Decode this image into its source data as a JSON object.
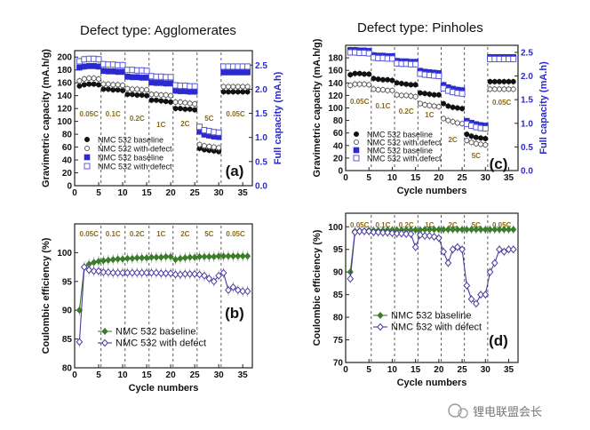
{
  "watermark": "锂电联盟会长",
  "colors": {
    "baseline_black": "#111111",
    "defect_open": "#555555",
    "baseline_blue": "#2a2ad0",
    "defect_blue": "#4a4ae0",
    "ce_green": "#3a7d2a",
    "ce_purple": "#4a3aa0",
    "errorbar": "#9a9a9a"
  },
  "chart_data": [
    {
      "panel": "a",
      "type": "scatter",
      "title": "Defect type: Agglomerates",
      "xlabel": "",
      "ylabel": "Gravimetric capacity (mA.h/g)",
      "y2label": "Full  capacity (mA.h)",
      "xlim": [
        0,
        37
      ],
      "xticks": [
        0,
        5,
        10,
        15,
        20,
        25,
        30,
        35
      ],
      "ylim": [
        0,
        210
      ],
      "yticks": [
        0,
        20,
        40,
        60,
        80,
        100,
        120,
        140,
        160,
        180,
        200
      ],
      "y2lim": [
        0,
        2.8
      ],
      "y2ticks": [
        "0.0",
        "0.5",
        "1.0",
        "1.5",
        "2.0",
        "2.5"
      ],
      "dividers": [
        5.5,
        10.5,
        15.5,
        20.5,
        25.5,
        30.5
      ],
      "rate_labels": [
        "0.05C",
        "0.1C",
        "0.2C",
        "1C",
        "2C",
        "5C",
        "0.05C"
      ],
      "legend": [
        "NMC 532 baseline",
        "NMC 532 with defect",
        "NMC 532 baseline",
        "NMC 532 with defect"
      ],
      "series": [
        {
          "name": "NMC 532 baseline",
          "marker": "filled-circle",
          "axis": "left",
          "values": [
            155,
            157,
            158,
            158,
            157,
            150,
            150,
            149,
            149,
            148,
            142,
            142,
            141,
            141,
            140,
            133,
            133,
            132,
            131,
            130,
            120,
            120,
            119,
            119,
            118,
            58,
            56,
            55,
            54,
            53,
            146,
            146,
            146,
            146,
            146,
            146
          ]
        },
        {
          "name": "NMC 532 with defect",
          "marker": "open-circle",
          "axis": "left",
          "values": [
            163,
            166,
            167,
            167,
            166,
            158,
            158,
            157,
            157,
            156,
            151,
            150,
            150,
            149,
            149,
            142,
            142,
            141,
            141,
            140,
            130,
            130,
            129,
            128,
            127,
            64,
            62,
            61,
            60,
            59,
            154,
            154,
            154,
            154,
            154,
            154
          ]
        },
        {
          "name": "NMC 532 baseline",
          "marker": "filled-square",
          "axis": "right",
          "values": [
            2.45,
            2.47,
            2.48,
            2.48,
            2.47,
            2.38,
            2.37,
            2.37,
            2.36,
            2.36,
            2.26,
            2.25,
            2.25,
            2.24,
            2.24,
            2.14,
            2.13,
            2.13,
            2.12,
            2.12,
            1.97,
            1.96,
            1.96,
            1.95,
            1.95,
            1.12,
            1.06,
            1.04,
            1.02,
            1.01,
            2.35,
            2.35,
            2.35,
            2.35,
            2.35,
            2.35
          ]
        },
        {
          "name": "NMC 532 with defect",
          "marker": "open-square",
          "axis": "right",
          "values": [
            2.58,
            2.62,
            2.63,
            2.63,
            2.62,
            2.52,
            2.51,
            2.51,
            2.5,
            2.5,
            2.4,
            2.4,
            2.39,
            2.39,
            2.38,
            2.27,
            2.26,
            2.26,
            2.25,
            2.25,
            2.08,
            2.07,
            2.07,
            2.06,
            2.06,
            1.22,
            1.15,
            1.13,
            1.11,
            1.1,
            2.47,
            2.47,
            2.47,
            2.47,
            2.47,
            2.47
          ]
        }
      ]
    },
    {
      "panel": "b",
      "type": "line",
      "xlabel": "Cycle numbers",
      "ylabel": "Coulombic efficiency (%)",
      "xlim": [
        0,
        37
      ],
      "xticks": [
        0,
        5,
        10,
        15,
        20,
        25,
        30,
        35
      ],
      "ylim": [
        80,
        105
      ],
      "yticks": [
        80,
        85,
        90,
        95,
        100
      ],
      "dividers": [
        5.5,
        10.5,
        15.5,
        20.5,
        25.5,
        30.5
      ],
      "rate_labels": [
        "0.05C",
        "0.1C",
        "0.2C",
        "1C",
        "2C",
        "5C",
        "0.05C"
      ],
      "legend": [
        "NMC 532 baseline",
        "NMC 532 with defect"
      ],
      "series": [
        {
          "name": "NMC 532 baseline",
          "marker": "filled-diamond",
          "values": [
            90,
            97.5,
            98.0,
            98.3,
            98.5,
            98.6,
            98.7,
            98.8,
            98.9,
            98.9,
            99.0,
            99.0,
            99.1,
            99.1,
            99.1,
            99.2,
            99.2,
            99.2,
            99.3,
            99.3,
            98.8,
            99.0,
            99.1,
            99.2,
            99.2,
            99.3,
            99.3,
            99.3,
            99.3,
            99.4,
            99.4,
            99.4,
            99.4,
            99.4,
            99.4,
            99.4
          ]
        },
        {
          "name": "NMC 532 with defect",
          "marker": "open-diamond",
          "values": [
            84.5,
            97.5,
            97.0,
            96.8,
            96.8,
            96.6,
            96.6,
            96.5,
            96.5,
            96.5,
            96.5,
            96.5,
            96.5,
            96.5,
            96.5,
            96.5,
            96.5,
            96.4,
            96.4,
            96.4,
            96.2,
            96.2,
            96.3,
            96.3,
            96.3,
            96.2,
            96.0,
            95.5,
            95.0,
            96.0,
            96.5,
            93.5,
            94.0,
            93.5,
            93.3,
            93.3
          ]
        }
      ]
    },
    {
      "panel": "c",
      "type": "scatter",
      "title": "Defect type: Pinholes",
      "xlabel": "Cycle numbers",
      "ylabel": "Gravimetric capacity (mA.h/g)",
      "y2label": "Full capacity (mA.h)",
      "xlim": [
        0,
        37
      ],
      "xticks": [
        0,
        5,
        10,
        15,
        20,
        25,
        30,
        35
      ],
      "ylim": [
        0,
        200
      ],
      "yticks": [
        0,
        20,
        40,
        60,
        80,
        100,
        120,
        140,
        160,
        180
      ],
      "y2lim": [
        0,
        2.65
      ],
      "y2ticks": [
        "0.0",
        "0.5",
        "1.0",
        "1.5",
        "2.0",
        "2.5"
      ],
      "dividers": [
        5.5,
        10.5,
        15.5,
        20.5,
        25.5,
        30.5
      ],
      "rate_labels": [
        "0.05C",
        "0.1C",
        "0.2C",
        "1C",
        "2C",
        "5C",
        "0.05C"
      ],
      "legend": [
        "NMC 532 baseline",
        "NMC 532 with defect",
        "NMC 532 baseline",
        "NMC 532 with defect"
      ],
      "series": [
        {
          "name": "NMC 532 baseline",
          "marker": "filled-circle",
          "axis": "left",
          "values": [
            153,
            155,
            155,
            154,
            154,
            147,
            146,
            145,
            145,
            144,
            140,
            139,
            138,
            137,
            137,
            124,
            123,
            122,
            121,
            121,
            107,
            103,
            101,
            100,
            99,
            58,
            55,
            53,
            52,
            51,
            142,
            142,
            142,
            142,
            142,
            142
          ]
        },
        {
          "name": "NMC 532 with defect",
          "marker": "open-circle",
          "axis": "left",
          "values": [
            136,
            138,
            138,
            138,
            137,
            130,
            129,
            129,
            128,
            128,
            121,
            120,
            120,
            119,
            118,
            107,
            105,
            104,
            103,
            102,
            83,
            80,
            78,
            76,
            75,
            48,
            45,
            43,
            42,
            41,
            130,
            130,
            130,
            130,
            130,
            130
          ]
        },
        {
          "name": "NMC 532 baseline",
          "marker": "filled-square",
          "axis": "right",
          "values": [
            2.55,
            2.55,
            2.54,
            2.54,
            2.53,
            2.44,
            2.43,
            2.43,
            2.42,
            2.42,
            2.32,
            2.31,
            2.31,
            2.3,
            2.3,
            2.11,
            2.09,
            2.08,
            2.07,
            2.06,
            1.81,
            1.76,
            1.73,
            1.71,
            1.7,
            1.05,
            1.01,
            0.98,
            0.96,
            0.95,
            2.4,
            2.4,
            2.4,
            2.4,
            2.4,
            2.4
          ]
        },
        {
          "name": "NMC 532 with defect",
          "marker": "open-square",
          "axis": "right",
          "values": [
            2.5,
            2.5,
            2.49,
            2.49,
            2.48,
            2.39,
            2.38,
            2.38,
            2.37,
            2.37,
            2.27,
            2.26,
            2.26,
            2.25,
            2.25,
            2.05,
            2.03,
            2.02,
            2.01,
            2.0,
            1.74,
            1.69,
            1.66,
            1.64,
            1.63,
            0.99,
            0.95,
            0.92,
            0.9,
            0.89,
            2.36,
            2.36,
            2.36,
            2.36,
            2.36,
            2.36
          ]
        }
      ]
    },
    {
      "panel": "d",
      "type": "line",
      "xlabel": "Cycle numbers",
      "ylabel": "Coulombic efficiency (%)",
      "xlim": [
        0,
        37
      ],
      "xticks": [
        0,
        5,
        10,
        15,
        20,
        25,
        30,
        35
      ],
      "ylim": [
        70,
        103
      ],
      "yticks": [
        70,
        75,
        80,
        85,
        90,
        95,
        100
      ],
      "dividers": [
        5.5,
        10.5,
        15.5,
        20.5,
        25.5,
        30.5
      ],
      "rate_labels": [
        "0.05C",
        "0.1C",
        "0.2C",
        "1C",
        "2C",
        "5C",
        "0.05C"
      ],
      "legend": [
        "NMC 532 baseline",
        "NMC 532 with defect"
      ],
      "series": [
        {
          "name": "NMC 532 baseline",
          "marker": "filled-diamond",
          "values": [
            90,
            99.0,
            99.1,
            99.1,
            99.2,
            99.2,
            99.2,
            99.2,
            99.3,
            99.3,
            99.3,
            99.3,
            99.3,
            99.3,
            99.3,
            99.3,
            99.4,
            99.4,
            99.4,
            99.4,
            99.4,
            99.4,
            99.4,
            99.4,
            99.4,
            99.4,
            99.4,
            99.4,
            99.4,
            99.4,
            99.4,
            99.4,
            99.4,
            99.4,
            99.4,
            99.4
          ]
        },
        {
          "name": "NMC 532 with defect",
          "marker": "open-diamond",
          "values": [
            88.5,
            98.8,
            99.0,
            99.0,
            99.0,
            98.8,
            98.8,
            98.7,
            98.7,
            98.6,
            98.5,
            98.5,
            98.4,
            98.4,
            95.5,
            98.2,
            98.0,
            98.0,
            97.8,
            97.5,
            94.5,
            92.0,
            95.0,
            95.5,
            95.0,
            87.0,
            84.0,
            83.0,
            85.0,
            85.0,
            90.0,
            92.0,
            95.0,
            94.5,
            95.0,
            95.0
          ]
        }
      ]
    }
  ]
}
